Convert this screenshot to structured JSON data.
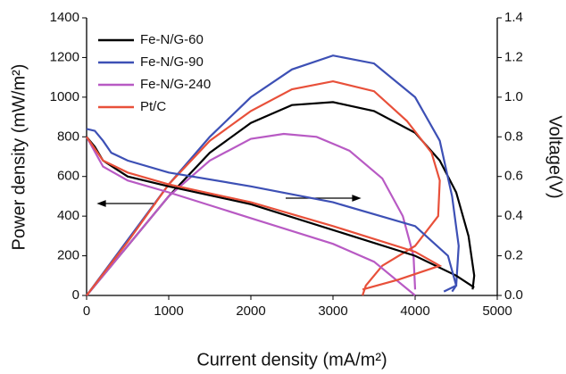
{
  "chart_data": {
    "type": "line",
    "x_label": "Current density (mA/m²)",
    "y_label": "Power density (mW/m²)",
    "y2_label": "Voltage(V)",
    "xlim": [
      0,
      5000
    ],
    "xticks": [
      0,
      1000,
      2000,
      3000,
      4000,
      5000
    ],
    "ylim": [
      0,
      1400
    ],
    "yticks": [
      0,
      200,
      400,
      600,
      800,
      1000,
      1200,
      1400
    ],
    "y2lim": [
      0,
      1.4
    ],
    "y2ticks": [
      {
        "value": 0,
        "label": "0.0"
      },
      0.2,
      0.4,
      0.6,
      0.8,
      {
        "value": 1,
        "label": "1.0"
      },
      1.2,
      1.4
    ],
    "legend": "upper left",
    "series": [
      {
        "name": "Fe-N/G-60",
        "color": "#000000",
        "x": [
          0,
          500,
          1000,
          1500,
          2000,
          2500,
          3000,
          3500,
          4000,
          4300,
          4500,
          4650,
          4720,
          4700
        ],
        "values": [
          0,
          250,
          500,
          720,
          870,
          960,
          975,
          930,
          820,
          680,
          520,
          300,
          100,
          30
        ]
      },
      {
        "name": "Fe-N/G-90",
        "color": "#3d50b5",
        "x": [
          0,
          500,
          1000,
          1500,
          2000,
          2500,
          3000,
          3500,
          4000,
          4300,
          4450,
          4530,
          4500,
          4450
        ],
        "values": [
          0,
          280,
          560,
          800,
          1000,
          1140,
          1210,
          1170,
          1000,
          780,
          500,
          250,
          50,
          20
        ]
      },
      {
        "name": "Fe-N/G-240",
        "color": "#b85ac4",
        "x": [
          0,
          500,
          1000,
          1500,
          2000,
          2400,
          2800,
          3200,
          3600,
          3850,
          3980,
          4000
        ],
        "values": [
          0,
          250,
          500,
          680,
          790,
          815,
          800,
          730,
          590,
          400,
          200,
          30
        ]
      },
      {
        "name": "Pt/C",
        "color": "#e8503a",
        "x": [
          0,
          500,
          1000,
          1500,
          2000,
          2500,
          3000,
          3500,
          3900,
          4200,
          4300,
          4280,
          4000,
          3600,
          3400,
          3360
        ],
        "values": [
          0,
          270,
          560,
          780,
          930,
          1040,
          1080,
          1030,
          880,
          720,
          580,
          400,
          250,
          150,
          50,
          0
        ]
      },
      {
        "color": "#000000",
        "axis": "y2",
        "x": [
          0,
          100,
          200,
          500,
          1000,
          2000,
          3000,
          4000,
          4500,
          4720
        ],
        "values": [
          0.8,
          0.75,
          0.68,
          0.6,
          0.55,
          0.46,
          0.33,
          0.2,
          0.1,
          0.04
        ]
      },
      {
        "color": "#3d50b5",
        "axis": "y2",
        "x": [
          0,
          100,
          200,
          300,
          500,
          1000,
          2000,
          3000,
          4000,
          4400,
          4500,
          4350
        ],
        "values": [
          0.84,
          0.83,
          0.78,
          0.72,
          0.68,
          0.62,
          0.55,
          0.47,
          0.35,
          0.2,
          0.05,
          0.02
        ]
      },
      {
        "color": "#b85ac4",
        "axis": "y2",
        "x": [
          0,
          200,
          500,
          1000,
          2000,
          3000,
          3500,
          4000
        ],
        "values": [
          0.8,
          0.65,
          0.58,
          0.52,
          0.39,
          0.26,
          0.17,
          0.0
        ]
      },
      {
        "color": "#e8503a",
        "axis": "y2",
        "x": [
          0,
          200,
          500,
          1000,
          2000,
          3000,
          4000,
          4300,
          3800,
          3360
        ],
        "values": [
          0.8,
          0.68,
          0.62,
          0.56,
          0.47,
          0.35,
          0.22,
          0.15,
          0.08,
          0.03
        ]
      }
    ]
  }
}
